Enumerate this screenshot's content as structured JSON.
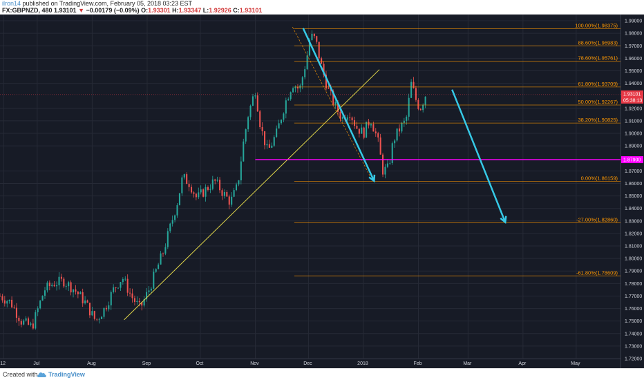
{
  "header": {
    "author": "ilron14",
    "published": " published on TradingView.com, February 05, 2018 03:23 EST",
    "symbol": "FX:GBPNZD, 480",
    "last": "1.93101",
    "change_arrow": "▼",
    "change": "−0.00179 (−0.09%)",
    "open_label": "O:",
    "open": "1.93301",
    "high_label": "H:",
    "high": "1.93347",
    "low_label": "L:",
    "low": "1.92926",
    "close_label": "C:",
    "close": "1.93101"
  },
  "footer": {
    "created_with": "Created with",
    "brand": "TradingView"
  },
  "colors": {
    "background": "#171b26",
    "grid": "#262a36",
    "up": "#26a69a",
    "down": "#ef5350",
    "fib": "#ff9800",
    "trendline": "#e0d64a",
    "support": "#ff00ff",
    "arrow": "#36c9e6",
    "price_tag": "#e63946",
    "axis_text": "#d1d4dc"
  },
  "chart_data": {
    "type": "candlestick",
    "symbol": "GBPNZD",
    "timeframe": "480",
    "ylim": [
      1.72,
      1.995
    ],
    "y_ticks": [
      1.99,
      1.98,
      1.97,
      1.96,
      1.95,
      1.94,
      1.92,
      1.91,
      1.9,
      1.89,
      1.87,
      1.86,
      1.85,
      1.84,
      1.83,
      1.82,
      1.81,
      1.8,
      1.79,
      1.78,
      1.77,
      1.76,
      1.75,
      1.74,
      1.73,
      1.72
    ],
    "y_tick_labels": [
      "1.99000",
      "1.98000",
      "1.97000",
      "1.96000",
      "1.95000",
      "1.94000",
      "1.92000",
      "1.91000",
      "1.90000",
      "1.89000",
      "1.87000",
      "1.86000",
      "1.85000",
      "1.84000",
      "1.83000",
      "1.82000",
      "1.81000",
      "1.80000",
      "1.79000",
      "1.78000",
      "1.77000",
      "1.76000",
      "1.75000",
      "1.74000",
      "1.73000",
      "1.72000"
    ],
    "x_labels": [
      {
        "label": "12",
        "date": "2017-06-12"
      },
      {
        "label": "Jul",
        "date": "2017-07-01"
      },
      {
        "label": "Aug",
        "date": "2017-08-01"
      },
      {
        "label": "Sep",
        "date": "2017-09-01"
      },
      {
        "label": "Oct",
        "date": "2017-10-01"
      },
      {
        "label": "Nov",
        "date": "2017-11-01"
      },
      {
        "label": "Dec",
        "date": "2017-12-01"
      },
      {
        "label": "2018",
        "date": "2018-01-01"
      },
      {
        "label": "Feb",
        "date": "2018-02-01"
      },
      {
        "label": "Mar",
        "date": "2018-03-01"
      },
      {
        "label": "Apr",
        "date": "2018-04-01"
      },
      {
        "label": "May",
        "date": "2018-05-01"
      }
    ],
    "x_range": [
      "2017-06-10",
      "2018-05-26"
    ],
    "price_path": [
      [
        "2017-06-10",
        1.77
      ],
      [
        "2017-06-16",
        1.765
      ],
      [
        "2017-06-22",
        1.75
      ],
      [
        "2017-06-28",
        1.745
      ],
      [
        "2017-07-05",
        1.775
      ],
      [
        "2017-07-10",
        1.78
      ],
      [
        "2017-07-16",
        1.782
      ],
      [
        "2017-07-22",
        1.775
      ],
      [
        "2017-07-28",
        1.765
      ],
      [
        "2017-08-03",
        1.75
      ],
      [
        "2017-08-08",
        1.76
      ],
      [
        "2017-08-13",
        1.775
      ],
      [
        "2017-08-18",
        1.785
      ],
      [
        "2017-08-23",
        1.77
      ],
      [
        "2017-08-28",
        1.76
      ],
      [
        "2017-09-02",
        1.775
      ],
      [
        "2017-09-06",
        1.79
      ],
      [
        "2017-09-10",
        1.805
      ],
      [
        "2017-09-14",
        1.825
      ],
      [
        "2017-09-18",
        1.845
      ],
      [
        "2017-09-21",
        1.865
      ],
      [
        "2017-09-25",
        1.86
      ],
      [
        "2017-09-29",
        1.848
      ],
      [
        "2017-10-04",
        1.855
      ],
      [
        "2017-10-09",
        1.862
      ],
      [
        "2017-10-14",
        1.852
      ],
      [
        "2017-10-18",
        1.845
      ],
      [
        "2017-10-22",
        1.858
      ],
      [
        "2017-10-25",
        1.89
      ],
      [
        "2017-10-28",
        1.915
      ],
      [
        "2017-11-01",
        1.935
      ],
      [
        "2017-11-04",
        1.905
      ],
      [
        "2017-11-08",
        1.885
      ],
      [
        "2017-11-13",
        1.9
      ],
      [
        "2017-11-18",
        1.925
      ],
      [
        "2017-11-22",
        1.94
      ],
      [
        "2017-11-26",
        1.935
      ],
      [
        "2017-11-30",
        1.96
      ],
      [
        "2017-12-02",
        1.978
      ],
      [
        "2017-12-05",
        1.975
      ],
      [
        "2017-12-08",
        1.955
      ],
      [
        "2017-12-12",
        1.935
      ],
      [
        "2017-12-16",
        1.922
      ],
      [
        "2017-12-20",
        1.912
      ],
      [
        "2017-12-24",
        1.918
      ],
      [
        "2017-12-28",
        1.905
      ],
      [
        "2018-01-01",
        1.9
      ],
      [
        "2018-01-05",
        1.912
      ],
      [
        "2018-01-09",
        1.895
      ],
      [
        "2018-01-12",
        1.87
      ],
      [
        "2018-01-15",
        1.872
      ],
      [
        "2018-01-18",
        1.895
      ],
      [
        "2018-01-22",
        1.905
      ],
      [
        "2018-01-25",
        1.91
      ],
      [
        "2018-01-28",
        1.94
      ],
      [
        "2018-01-31",
        1.925
      ],
      [
        "2018-02-02",
        1.92
      ],
      [
        "2018-02-05",
        1.931
      ]
    ],
    "last_price": "1.93101",
    "countdown": "05:38:13",
    "fibonacci": {
      "date_start": "2017-11-23",
      "date_end": "2018-05-26",
      "levels": [
        {
          "ratio": "100.00%",
          "price": 1.98375,
          "label": "100.00%(1.98375)"
        },
        {
          "ratio": "88.60%",
          "price": 1.96983,
          "label": "88.60%(1.96983)"
        },
        {
          "ratio": "78.60%",
          "price": 1.95761,
          "label": "78.60%(1.95761)"
        },
        {
          "ratio": "61.80%",
          "price": 1.93709,
          "label": "61.80%(1.93709)"
        },
        {
          "ratio": "50.00%",
          "price": 1.92267,
          "label": "50.00%(1.92267)"
        },
        {
          "ratio": "38.20%",
          "price": 1.90825,
          "label": "38.20%(1.90825)"
        },
        {
          "ratio": "0.00%",
          "price": 1.86159,
          "label": "0.00%(1.86159)"
        },
        {
          "ratio": "-27.00%",
          "price": 1.8286,
          "label": "-27.00%(1.82860)"
        },
        {
          "ratio": "-61.80%",
          "price": 1.78609,
          "label": "-61.80%(1.78609)"
        }
      ]
    },
    "support_line": {
      "price": 1.879,
      "label": "1.87900",
      "date_start": "2017-11-01",
      "date_end": "2018-05-26"
    },
    "trendline": [
      [
        "2017-08-19",
        1.751
      ],
      [
        "2018-01-10",
        1.951
      ]
    ],
    "fib_connector": [
      [
        "2017-11-22",
        1.985
      ],
      [
        "2018-01-05",
        1.865
      ]
    ],
    "arrows": [
      {
        "from": [
          "2017-11-28",
          1.984
        ],
        "to": [
          "2018-01-07",
          1.862
        ]
      },
      {
        "from": [
          "2018-02-20",
          1.935
        ],
        "to": [
          "2018-03-22",
          1.829
        ]
      }
    ]
  }
}
